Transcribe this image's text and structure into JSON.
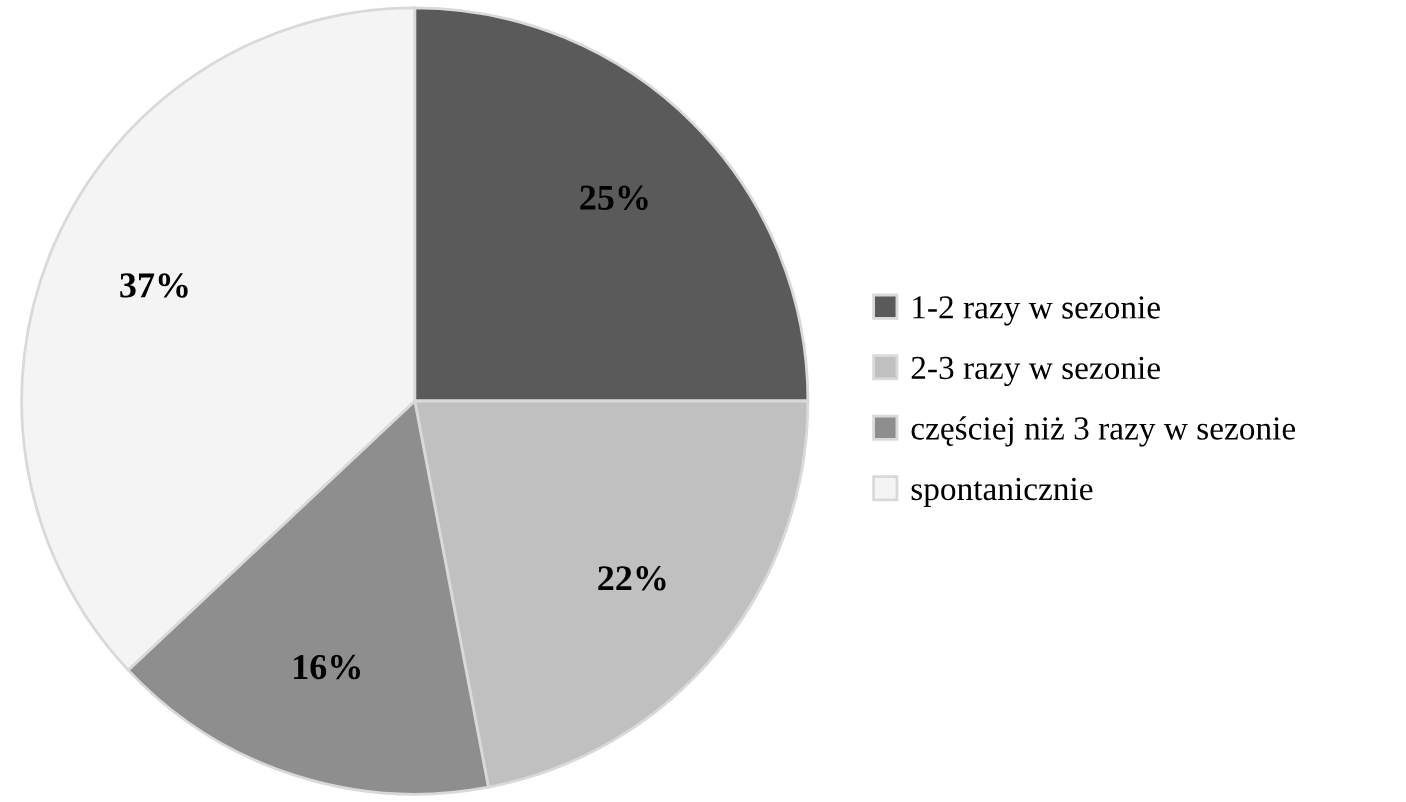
{
  "chart_data": {
    "type": "pie",
    "categories": [
      "1-2 razy w sezonie",
      "2-3 razy w sezonie",
      "częściej niż 3 razy w sezonie",
      "spontanicznie"
    ],
    "values": [
      25,
      22,
      16,
      37
    ],
    "value_labels": [
      "25%",
      "22%",
      "16%",
      "37%"
    ],
    "colors": [
      "#5a5a5a",
      "#c0c0c0",
      "#8e8e8e",
      "#f4f4f4"
    ],
    "legend": "right"
  }
}
